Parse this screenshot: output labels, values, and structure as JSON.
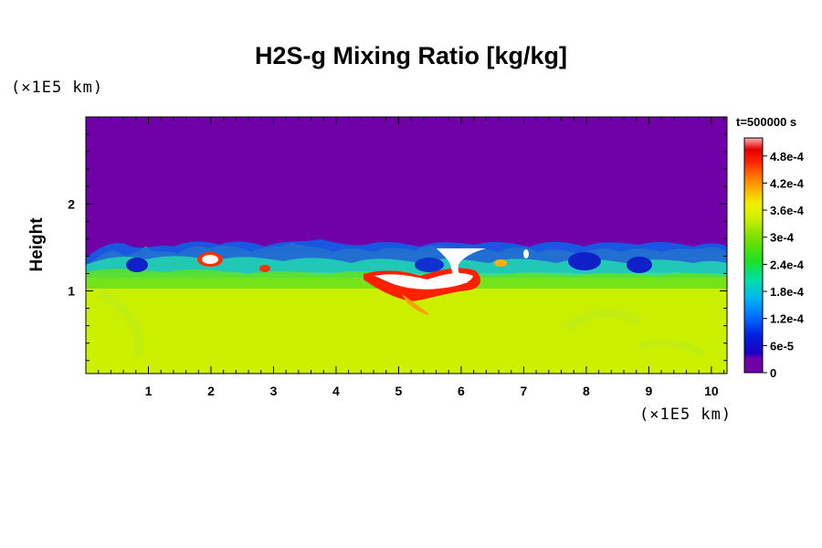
{
  "chart_data": {
    "type": "heatmap",
    "title": "H2S-g Mixing Ratio [kg/kg]",
    "ylabel": "Height",
    "x_unit": "(×1E5 km)",
    "y_unit": "(×1E5 km)",
    "time_label": "t=500000 s",
    "xlim": [
      0,
      10.25
    ],
    "ylim": [
      0.05,
      3.0
    ],
    "x_ticks": [
      1,
      2,
      3,
      4,
      5,
      6,
      7,
      8,
      9,
      10
    ],
    "y_ticks": [
      1,
      2
    ],
    "colorbar": {
      "min": 0,
      "max": 0.00052,
      "tick_values": [
        0,
        6e-05,
        0.00012,
        0.00018,
        0.00024,
        0.0003,
        0.00036,
        0.00042,
        0.00048
      ],
      "tick_labels": [
        "0",
        "6e-5",
        "1.2e-4",
        "1.8e-4",
        "2.4e-4",
        "3e-4",
        "3.6e-4",
        "4.2e-4",
        "4.8e-4"
      ]
    },
    "description_values": {
      "upper_region_value": 0,
      "lower_region_value": 0.00034,
      "interface_height": 1.4
    }
  },
  "colors": {
    "background_purple": "#7000a8",
    "lower_yellow_green": "#ccf000",
    "green": "#90e000",
    "white_max": "#ffffff"
  }
}
